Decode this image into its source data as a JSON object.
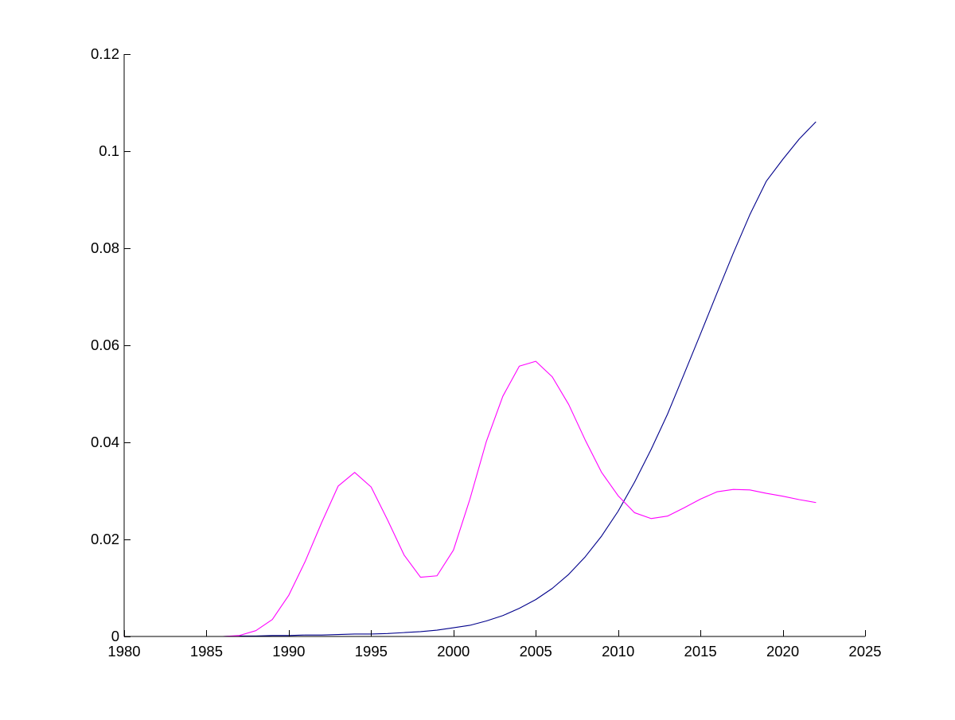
{
  "chart_data": {
    "type": "line",
    "title": "",
    "xlabel": "",
    "ylabel": "",
    "xlim": [
      1980,
      2025
    ],
    "ylim": [
      0,
      0.12
    ],
    "x_ticks": [
      1980,
      1985,
      1990,
      1995,
      2000,
      2005,
      2010,
      2015,
      2020,
      2025
    ],
    "x_tick_labels": [
      "1980",
      "1985",
      "1990",
      "1995",
      "2000",
      "2005",
      "2010",
      "2015",
      "2020",
      "2025"
    ],
    "y_ticks": [
      0,
      0.02,
      0.04,
      0.06,
      0.08,
      0.1,
      0.12
    ],
    "y_tick_labels": [
      "0",
      "0.02",
      "0.04",
      "0.06",
      "0.08",
      "0.1",
      "0.12"
    ],
    "grid": false,
    "legend": "none",
    "x": [
      1980,
      1981,
      1982,
      1983,
      1984,
      1985,
      1986,
      1987,
      1988,
      1989,
      1990,
      1991,
      1992,
      1993,
      1994,
      1995,
      1996,
      1997,
      1998,
      1999,
      2000,
      2001,
      2002,
      2003,
      2004,
      2005,
      2006,
      2007,
      2008,
      2009,
      2010,
      2011,
      2012,
      2013,
      2014,
      2015,
      2016,
      2017,
      2018,
      2019,
      2020,
      2021,
      2022
    ],
    "series": [
      {
        "color": "#00008b",
        "values": [
          0,
          0,
          0,
          0,
          0,
          0,
          0,
          0.0001,
          0.0001,
          0.0002,
          0.0002,
          0.0003,
          0.0003,
          0.0004,
          0.0005,
          0.0005,
          0.0006,
          0.0008,
          0.001,
          0.0013,
          0.0018,
          0.0023,
          0.0032,
          0.0043,
          0.0058,
          0.0076,
          0.0099,
          0.0128,
          0.0164,
          0.0207,
          0.0258,
          0.0318,
          0.0385,
          0.0458,
          0.054,
          0.0623,
          0.0707,
          0.079,
          0.0869,
          0.0938,
          0.0983,
          0.1025,
          0.106
        ]
      },
      {
        "color": "#ff00ff",
        "values": [
          0,
          0,
          0,
          0,
          0,
          0,
          0,
          0.0002,
          0.0012,
          0.0035,
          0.0085,
          0.0155,
          0.0235,
          0.031,
          0.0338,
          0.0308,
          0.024,
          0.0168,
          0.0122,
          0.0125,
          0.0178,
          0.0283,
          0.0402,
          0.0495,
          0.0557,
          0.0567,
          0.0535,
          0.0478,
          0.0405,
          0.0338,
          0.029,
          0.0255,
          0.0243,
          0.0248,
          0.0265,
          0.0283,
          0.0298,
          0.0303,
          0.0302,
          0.0295,
          0.0289,
          0.0282,
          0.0276
        ]
      }
    ]
  }
}
